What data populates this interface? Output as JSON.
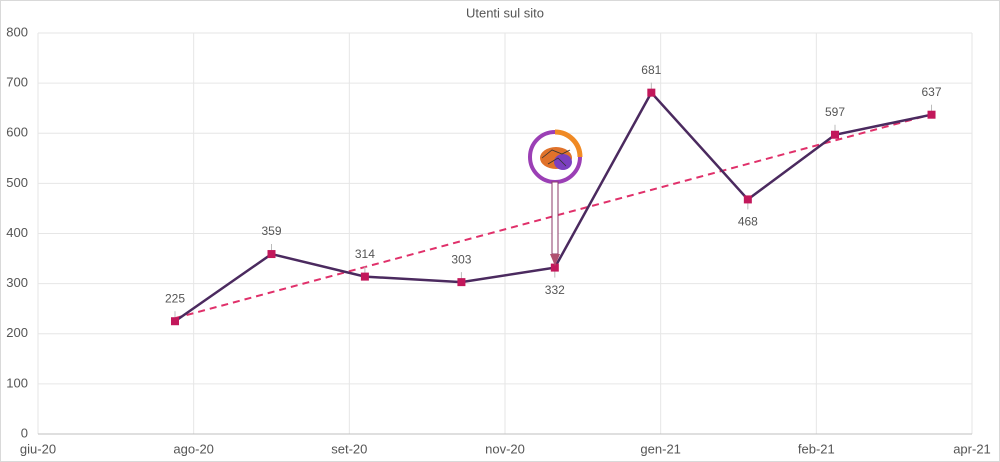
{
  "chart_data": {
    "type": "line",
    "title": "Utenti sul sito",
    "x": [
      0.88,
      1.5,
      2.1,
      2.72,
      3.32,
      3.94,
      4.56,
      5.12,
      5.74
    ],
    "series": [
      {
        "color": "#4b2a5f",
        "marker_color": "#c2185b",
        "values": [
          225,
          359,
          314,
          303,
          332,
          681,
          468,
          597,
          637
        ]
      }
    ],
    "trendline": true,
    "trend_color": "#e0306a",
    "xlim": [
      0,
      6
    ],
    "xticks": [
      {
        "value": 0,
        "label": "giu-20"
      },
      {
        "value": 1,
        "label": "ago-20"
      },
      {
        "value": 2,
        "label": "set-20"
      },
      {
        "value": 3,
        "label": "nov-20"
      },
      {
        "value": 4,
        "label": "gen-21"
      },
      {
        "value": 5,
        "label": "feb-21"
      },
      {
        "value": 6,
        "label": "apr-21"
      }
    ],
    "ylim": [
      0,
      800
    ],
    "yticks": [
      0,
      100,
      200,
      300,
      400,
      500,
      600,
      700,
      800
    ],
    "grid": true
  }
}
